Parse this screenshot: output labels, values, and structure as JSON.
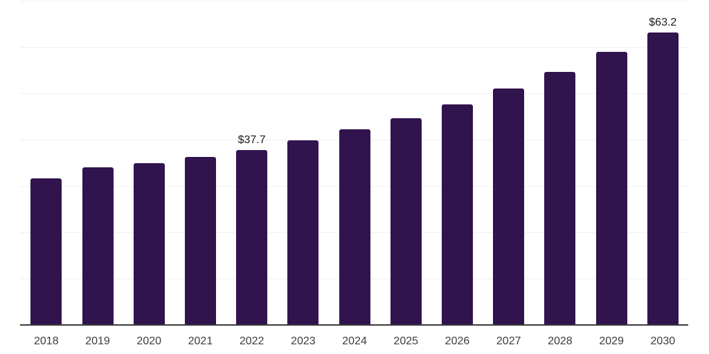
{
  "chart_data": {
    "type": "bar",
    "title": "",
    "xlabel": "",
    "ylabel": "",
    "categories": [
      "2018",
      "2019",
      "2020",
      "2021",
      "2022",
      "2023",
      "2024",
      "2025",
      "2026",
      "2027",
      "2028",
      "2029",
      "2030"
    ],
    "values": [
      31.6,
      34.0,
      34.9,
      36.2,
      37.7,
      39.8,
      42.2,
      44.7,
      47.6,
      51.1,
      54.7,
      58.9,
      63.2
    ],
    "data_labels": {
      "2022": "$37.7",
      "2030": "$63.2"
    },
    "ylim": [
      0,
      70
    ],
    "grid_step": 10,
    "grid": "horizontal-only",
    "legend": "none",
    "y_axis_labels_visible": false,
    "colors": {
      "bar": "#31134e",
      "grid": "#f0f0f0",
      "axis": "#3a3a3a",
      "tick_text": "#3c3c3c",
      "value_text": "#1a1a1a",
      "background": "#ffffff"
    }
  }
}
